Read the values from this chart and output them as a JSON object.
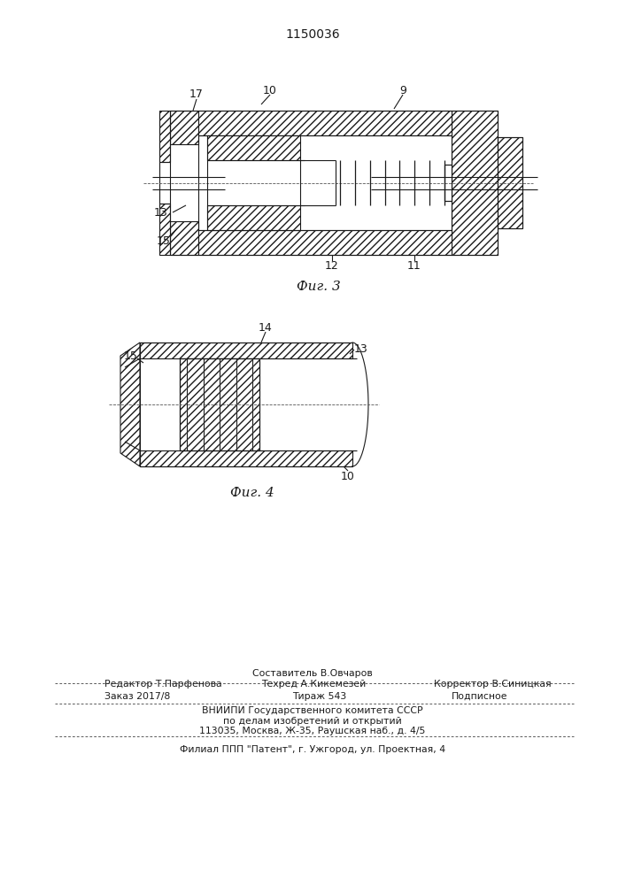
{
  "title": "1150036",
  "bg_color": "#ffffff",
  "fig3_caption": "Фиг. 3",
  "fig4_caption": "Фиг. 4",
  "line_color": "#1a1a1a"
}
